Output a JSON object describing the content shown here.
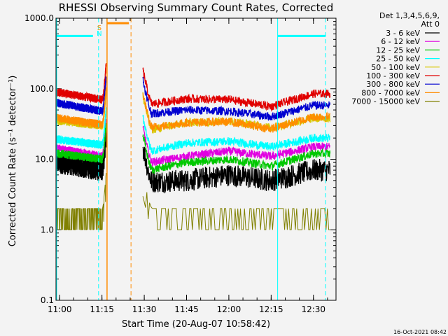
{
  "chart_data": {
    "type": "line",
    "title": "RHESSI Observing Summary Count Rates, Corrected",
    "ylabel": "Corrected Count Rate (s⁻¹ detector⁻¹)",
    "xlabel": "Start Time (20-Aug-07 10:58:42)",
    "timestamp": "16-Oct-2021 08:42",
    "yscale": "log",
    "ylim": [
      0.1,
      1000.0
    ],
    "xlim_minutes_after_11_00": [
      -1.3,
      98.0
    ],
    "y_tick_labels": [
      "0.1",
      "1.0",
      "10.0",
      "100.0",
      "1000.0"
    ],
    "x_tick_labels": [
      "11:00",
      "11:15",
      "11:30",
      "11:45",
      "12:00",
      "12:15",
      "12:30"
    ],
    "legend_header": [
      "Det 1,3,4,5,6,9,",
      "Att 0"
    ],
    "legend_position": "outside-right",
    "flag_labels": [
      "S",
      "N"
    ],
    "series": [
      {
        "name": "3 - 6 keV",
        "color": "#000000",
        "values_by_time": {
          "11:00": 9,
          "11:15": 7,
          "11:32": 4.8,
          "11:45": 5,
          "12:00": 6,
          "12:15": 5,
          "12:30": 7
        }
      },
      {
        "name": "6 - 12 keV",
        "color": "#e000e0",
        "values_by_time": {
          "11:00": 14,
          "11:15": 11,
          "11:32": 9,
          "11:45": 11,
          "12:00": 13,
          "12:15": 11,
          "12:30": 15
        }
      },
      {
        "name": "12 - 25 keV",
        "color": "#00c800",
        "values_by_time": {
          "11:00": 12,
          "11:15": 10,
          "11:32": 7,
          "11:45": 9,
          "12:00": 10,
          "12:15": 8,
          "12:30": 12
        }
      },
      {
        "name": "25 - 50 keV",
        "color": "#00ffff",
        "values_by_time": {
          "11:00": 19,
          "11:15": 16,
          "11:32": 13,
          "11:45": 17,
          "12:00": 18,
          "12:15": 15,
          "12:30": 20
        }
      },
      {
        "name": "50 - 100 keV",
        "color": "#d8c800",
        "values_by_time": {
          "11:00": 35,
          "11:15": 30,
          "11:32": 26,
          "11:45": 33,
          "12:00": 35,
          "12:15": 28,
          "12:30": 38
        }
      },
      {
        "name": "100 - 300 keV",
        "color": "#e00000",
        "values_by_time": {
          "11:00": 88,
          "11:15": 70,
          "11:32": 60,
          "11:45": 72,
          "12:00": 70,
          "12:15": 56,
          "12:30": 85
        }
      },
      {
        "name": "300 - 800 keV",
        "color": "#0000d0",
        "values_by_time": {
          "11:00": 62,
          "11:15": 48,
          "11:32": 44,
          "11:45": 50,
          "12:00": 48,
          "12:15": 40,
          "12:30": 58
        }
      },
      {
        "name": "800 - 7000 keV",
        "color": "#ff8c00",
        "values_by_time": {
          "11:00": 38,
          "11:15": 31,
          "11:32": 28,
          "11:45": 33,
          "12:00": 34,
          "12:15": 27,
          "12:30": 40
        }
      },
      {
        "name": "7000 - 15000 keV",
        "color": "#808000",
        "values_by_time": {
          "11:00": 2,
          "11:15": 1,
          "11:32": 1,
          "11:45": 2,
          "12:00": 1,
          "12:15": 1,
          "12:30": 2
        }
      }
    ]
  },
  "colors": {
    "saa": "#00ffff",
    "night": "#ff8c00"
  }
}
